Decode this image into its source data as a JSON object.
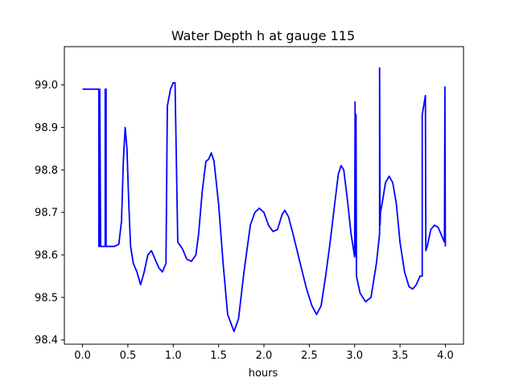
{
  "chart_data": {
    "type": "line",
    "title": "Water Depth h at gauge 115",
    "xlabel": "hours",
    "ylabel": "",
    "xlim": [
      -0.2,
      4.2
    ],
    "ylim": [
      98.39,
      99.09
    ],
    "xticks": [
      0.0,
      0.5,
      1.0,
      1.5,
      2.0,
      2.5,
      3.0,
      3.5,
      4.0
    ],
    "xtick_labels": [
      "0.0",
      "0.5",
      "1.0",
      "1.5",
      "2.0",
      "2.5",
      "3.0",
      "3.5",
      "4.0"
    ],
    "yticks": [
      98.4,
      98.5,
      98.6,
      98.7,
      98.8,
      98.9,
      99.0
    ],
    "ytick_labels": [
      "98.4",
      "98.5",
      "98.6",
      "98.7",
      "98.8",
      "98.9",
      "99.0"
    ],
    "grid": false,
    "line_color": "#0000ff",
    "series": [
      {
        "x": [
          0.0,
          0.18,
          0.18,
          0.19,
          0.19,
          0.2,
          0.25,
          0.25,
          0.26,
          0.26,
          0.27,
          0.3,
          0.35,
          0.4,
          0.43,
          0.45,
          0.47,
          0.49,
          0.51,
          0.53,
          0.56,
          0.6,
          0.64,
          0.68,
          0.72,
          0.76,
          0.8,
          0.84,
          0.88,
          0.92,
          0.935,
          0.935,
          0.97,
          1.0,
          1.02,
          1.05,
          1.05,
          1.1,
          1.15,
          1.2,
          1.25,
          1.28,
          1.32,
          1.36,
          1.39,
          1.42,
          1.45,
          1.5,
          1.55,
          1.6,
          1.67,
          1.72,
          1.78,
          1.85,
          1.9,
          1.95,
          2.0,
          2.05,
          2.1,
          2.15,
          2.2,
          2.23,
          2.27,
          2.32,
          2.4,
          2.47,
          2.53,
          2.58,
          2.63,
          2.68,
          2.73,
          2.78,
          2.82,
          2.85,
          2.88,
          2.92,
          2.96,
          3.0,
          3.005,
          3.01,
          3.015,
          3.02,
          3.06,
          3.12,
          3.18,
          3.24,
          3.275,
          3.275,
          3.28,
          3.285,
          3.31,
          3.34,
          3.38,
          3.42,
          3.46,
          3.5,
          3.55,
          3.6,
          3.64,
          3.68,
          3.72,
          3.745,
          3.745,
          3.78,
          3.785,
          3.8,
          3.84,
          3.88,
          3.92,
          3.96,
          3.99,
          3.995,
          4.0
        ],
        "y": [
          98.99,
          98.99,
          98.62,
          98.62,
          98.99,
          98.62,
          98.62,
          98.99,
          98.99,
          98.62,
          98.62,
          98.62,
          98.62,
          98.625,
          98.68,
          98.82,
          98.9,
          98.85,
          98.72,
          98.62,
          98.58,
          98.56,
          98.53,
          98.56,
          98.6,
          98.61,
          98.59,
          98.57,
          98.56,
          98.58,
          98.95,
          98.95,
          98.99,
          99.005,
          99.005,
          98.63,
          98.63,
          98.615,
          98.59,
          98.585,
          98.6,
          98.65,
          98.75,
          98.82,
          98.825,
          98.84,
          98.82,
          98.72,
          98.58,
          98.46,
          98.42,
          98.45,
          98.56,
          98.67,
          98.7,
          98.71,
          98.7,
          98.67,
          98.655,
          98.66,
          98.695,
          98.705,
          98.69,
          98.65,
          98.58,
          98.52,
          98.48,
          98.46,
          98.48,
          98.55,
          98.63,
          98.72,
          98.79,
          98.81,
          98.8,
          98.73,
          98.65,
          98.595,
          98.96,
          98.6,
          98.93,
          98.55,
          98.51,
          98.49,
          98.5,
          98.58,
          98.65,
          99.04,
          98.67,
          98.7,
          98.73,
          98.77,
          98.785,
          98.77,
          98.72,
          98.63,
          98.56,
          98.525,
          98.52,
          98.53,
          98.55,
          98.55,
          98.93,
          98.975,
          98.61,
          98.62,
          98.66,
          98.67,
          98.665,
          98.645,
          98.63,
          98.995,
          98.62
        ]
      }
    ]
  }
}
